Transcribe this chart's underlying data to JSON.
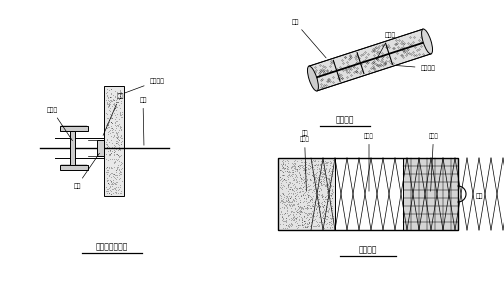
{
  "bg_color": "#ffffff",
  "line_color": "#000000",
  "title1": "钢腰梁连接详图",
  "title2": "土钉详图",
  "title3": "剖面详图",
  "label1_waler": "钢腰梁",
  "label1_rebar": "钢筋",
  "label1_nail": "土钉",
  "label1_plate": "垫板",
  "label1_concrete": "喷混凝土",
  "label2_nail": "土钉",
  "label2_grout": "注浆体",
  "label2_bracket": "定位支架",
  "label3_shotcrete": "喷射\n混凝土",
  "label3_mesh": "钢筋网",
  "label3_waler": "钢腰梁",
  "label3_nail": "土钉"
}
